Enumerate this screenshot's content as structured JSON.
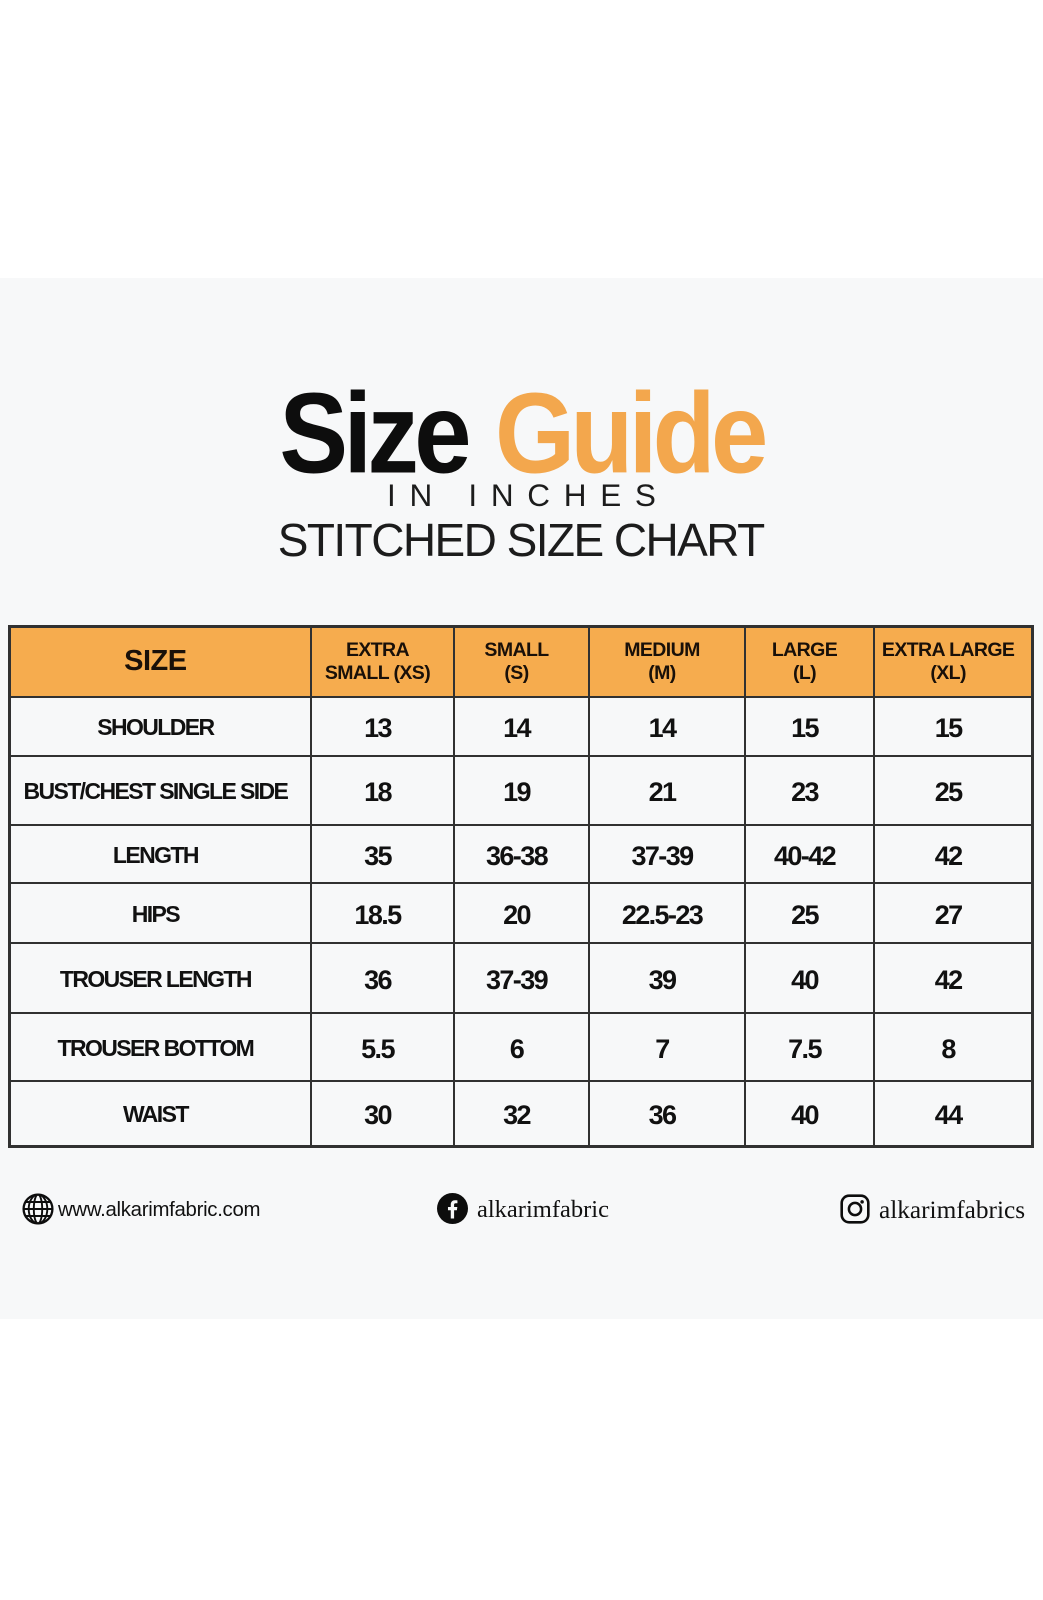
{
  "flyer": {
    "page_background": "#ffffff",
    "background": "#f7f8f9",
    "accent_orange": "#f3a74d",
    "title": {
      "black_word": "Size",
      "orange_word": "Guide"
    },
    "subtitle_line1": "IN INCHES",
    "subtitle_line2": "STITCHED SIZE CHART"
  },
  "size_table": {
    "header_background": "#f6ac4e",
    "border_color": "#313131",
    "columns": [
      {
        "label": "SIZE",
        "lines": [
          "SIZE"
        ]
      },
      {
        "label": "EXTRA SMALL (XS)",
        "lines": [
          "EXTRA",
          "SMALL (XS)"
        ]
      },
      {
        "label": "SMALL (S)",
        "lines": [
          "SMALL",
          "(S)"
        ]
      },
      {
        "label": "MEDIUM (M)",
        "lines": [
          "MEDIUM",
          "(M)"
        ]
      },
      {
        "label": "LARGE (L)",
        "lines": [
          "LARGE",
          "(L)"
        ]
      },
      {
        "label": "EXTRA LARGE (XL)",
        "lines": [
          "EXTRA LARGE",
          "(XL)"
        ]
      }
    ],
    "rows": [
      {
        "label": "SHOULDER",
        "values": [
          "13",
          "14",
          "14",
          "15",
          "15"
        ]
      },
      {
        "label": "BUST/CHEST SINGLE SIDE",
        "values": [
          "18",
          "19",
          "21",
          "23",
          "25"
        ]
      },
      {
        "label": "LENGTH",
        "values": [
          "35",
          "36-38",
          "37-39",
          "40-42",
          "42"
        ]
      },
      {
        "label": "HIPS",
        "values": [
          "18.5",
          "20",
          "22.5-23",
          "25",
          "27"
        ]
      },
      {
        "label": "TROUSER LENGTH",
        "values": [
          "36",
          "37-39",
          "39",
          "40",
          "42"
        ]
      },
      {
        "label": "TROUSER BOTTOM",
        "values": [
          "5.5",
          "6",
          "7",
          "7.5",
          "8"
        ]
      },
      {
        "label": "WAIST",
        "values": [
          "30",
          "32",
          "36",
          "40",
          "44"
        ]
      }
    ]
  },
  "footer": {
    "website": {
      "icon": "globe-icon",
      "text": "www.alkarimfabric.com"
    },
    "facebook": {
      "icon": "facebook-icon",
      "text": "alkarimfabric"
    },
    "instagram": {
      "icon": "instagram-icon",
      "text": "alkarimfabrics"
    }
  },
  "chart_data": {
    "type": "table",
    "title": "Size Guide - Stitched Size Chart (in inches)",
    "columns": [
      "SIZE",
      "EXTRA SMALL (XS)",
      "SMALL (S)",
      "MEDIUM (M)",
      "LARGE (L)",
      "EXTRA LARGE (XL)"
    ],
    "rows": [
      [
        "SHOULDER",
        "13",
        "14",
        "14",
        "15",
        "15"
      ],
      [
        "BUST/CHEST SINGLE SIDE",
        "18",
        "19",
        "21",
        "23",
        "25"
      ],
      [
        "LENGTH",
        "35",
        "36-38",
        "37-39",
        "40-42",
        "42"
      ],
      [
        "HIPS",
        "18.5",
        "20",
        "22.5-23",
        "25",
        "27"
      ],
      [
        "TROUSER LENGTH",
        "36",
        "37-39",
        "39",
        "40",
        "42"
      ],
      [
        "TROUSER BOTTOM",
        "5.5",
        "6",
        "7",
        "7.5",
        "8"
      ],
      [
        "WAIST",
        "30",
        "32",
        "36",
        "40",
        "44"
      ]
    ]
  }
}
